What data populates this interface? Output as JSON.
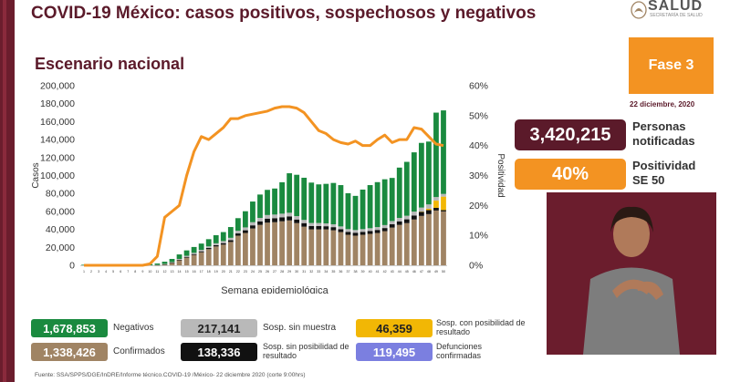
{
  "header": {
    "title": "COVID-19 México: casos positivos, sospechosos y negativos",
    "subtitle": "Escenario nacional",
    "logo_text": "SALUD",
    "logo_subtext": "SECRETARÍA DE SALUD"
  },
  "fase": {
    "label": "Fase 3",
    "date": "22 diciembre, 2020"
  },
  "stats": {
    "notificadas": {
      "value": "3,420,215",
      "label": "Personas notificadas",
      "color": "#5b1a2a"
    },
    "positividad": {
      "value": "40%",
      "label": "Positividad SE 50",
      "color": "#f39322"
    }
  },
  "legend": [
    {
      "value": "1,678,853",
      "label": "Negativos",
      "color": "#1a8a3f"
    },
    {
      "value": "217,141",
      "label": "Sosp. sin muestra",
      "color": "#b9b9b9"
    },
    {
      "value": "46,359",
      "label": "Sosp. con posibilidad de resultado",
      "color": "#f2b705"
    },
    {
      "value": "1,338,426",
      "label": "Confirmados",
      "color": "#a08464"
    },
    {
      "value": "138,336",
      "label": "Sosp. sin posibilidad de resultado",
      "color": "#111111"
    },
    {
      "value": "119,495",
      "label": "Defunciones confirmadas",
      "color": "#7b7fe0"
    }
  ],
  "source": "Fuente: SSA/SPPS/DGE/InDRE/Informe técnico.COVID-19 /México- 22 diciembre 2020 (corte 9:00hrs)",
  "chart_data": {
    "type": "bar",
    "stacked": true,
    "xlabel": "Semana epidemiológica",
    "ylabel": "Casos",
    "y2label": "Positividad",
    "ylim": [
      0,
      200000
    ],
    "y2lim": [
      0,
      60
    ],
    "yticks": [
      "0",
      "20,000",
      "40,000",
      "60,000",
      "80,000",
      "100,000",
      "120,000",
      "140,000",
      "160,000",
      "180,000",
      "200,000"
    ],
    "y2ticks": [
      "0%",
      "10%",
      "20%",
      "30%",
      "40%",
      "50%",
      "60%"
    ],
    "categories": [
      "1",
      "2",
      "3",
      "4",
      "5",
      "6",
      "7",
      "8",
      "9",
      "10",
      "11",
      "12",
      "13",
      "14",
      "15",
      "16",
      "17",
      "18",
      "19",
      "20",
      "21",
      "22",
      "23",
      "24",
      "25",
      "26",
      "27",
      "28",
      "29",
      "30",
      "31",
      "32",
      "33",
      "34",
      "35",
      "36",
      "37",
      "38",
      "39",
      "40",
      "41",
      "42",
      "43",
      "44",
      "45",
      "46",
      "47",
      "48",
      "49",
      "50"
    ],
    "series": [
      {
        "name": "Confirmados",
        "color": "#a08464",
        "values": [
          0,
          0,
          0,
          0,
          0,
          0,
          0,
          0,
          0,
          0,
          200,
          800,
          2500,
          5500,
          8500,
          11500,
          14500,
          18000,
          21000,
          23000,
          26000,
          33000,
          36000,
          41000,
          45000,
          47500,
          48000,
          49000,
          50000,
          47000,
          43000,
          40000,
          40000,
          40000,
          39000,
          37000,
          34000,
          33000,
          34000,
          35000,
          36000,
          38000,
          42000,
          45000,
          47000,
          51000,
          55000,
          57000,
          61000,
          60000
        ]
      },
      {
        "name": "Sosp. sin posibilidad de resultado",
        "color": "#111111",
        "values": [
          0,
          0,
          0,
          0,
          0,
          0,
          0,
          0,
          0,
          0,
          100,
          300,
          500,
          700,
          900,
          1000,
          1100,
          1300,
          1500,
          1700,
          2000,
          2500,
          3000,
          3500,
          4000,
          4500,
          4500,
          4500,
          4500,
          4000,
          4000,
          3800,
          3800,
          3500,
          3500,
          3300,
          3300,
          3300,
          3300,
          3300,
          3400,
          3500,
          3800,
          4000,
          4200,
          4500,
          4500,
          4500,
          3000,
          1500
        ]
      },
      {
        "name": "Sosp. con posibilidad de resultado",
        "color": "#f2b705",
        "values": [
          0,
          0,
          0,
          0,
          0,
          0,
          0,
          0,
          0,
          0,
          0,
          0,
          0,
          0,
          0,
          0,
          0,
          0,
          0,
          0,
          0,
          0,
          0,
          0,
          0,
          0,
          0,
          0,
          0,
          0,
          0,
          0,
          0,
          0,
          0,
          0,
          0,
          0,
          0,
          0,
          0,
          0,
          0,
          0,
          0,
          0,
          300,
          1500,
          8000,
          15000
        ]
      },
      {
        "name": "Sosp. sin muestra",
        "color": "#b9b9b9",
        "values": [
          0,
          0,
          0,
          0,
          0,
          0,
          0,
          0,
          0,
          0,
          200,
          400,
          600,
          900,
          1200,
          1400,
          1600,
          1800,
          2000,
          2300,
          2600,
          3000,
          3200,
          3500,
          3800,
          4000,
          4000,
          4000,
          4000,
          3800,
          3500,
          3300,
          3300,
          3200,
          3200,
          3000,
          3000,
          3000,
          3000,
          3000,
          3200,
          3300,
          3500,
          3800,
          4000,
          4300,
          4500,
          4800,
          4000,
          3000
        ]
      },
      {
        "name": "Negativos",
        "color": "#1a8a3f",
        "values": [
          600,
          700,
          800,
          900,
          800,
          800,
          800,
          900,
          1000,
          1300,
          1500,
          2500,
          3500,
          5000,
          6000,
          6500,
          7000,
          8000,
          9000,
          10000,
          12000,
          14000,
          18000,
          23000,
          26000,
          28000,
          29000,
          35000,
          44000,
          46000,
          47000,
          45000,
          43000,
          44000,
          46000,
          46000,
          40000,
          38000,
          44000,
          48000,
          50000,
          51000,
          48000,
          56000,
          60000,
          66000,
          72000,
          70000,
          94000,
          93000
        ]
      },
      {
        "name": "Positividad",
        "type": "line",
        "axis": "y2",
        "color": "#f39322",
        "values": [
          0,
          0,
          0,
          0,
          0,
          0,
          0,
          0,
          0,
          0.5,
          3,
          16,
          18,
          20,
          30,
          38,
          43,
          42,
          44,
          46,
          49,
          49,
          50,
          50.5,
          51,
          51.5,
          52.5,
          53,
          53,
          52.5,
          51,
          48,
          45,
          44,
          42,
          41,
          40.5,
          41.5,
          40,
          40,
          42,
          43.5,
          41,
          42,
          42,
          46,
          45.5,
          43,
          40.5,
          40
        ]
      }
    ]
  }
}
